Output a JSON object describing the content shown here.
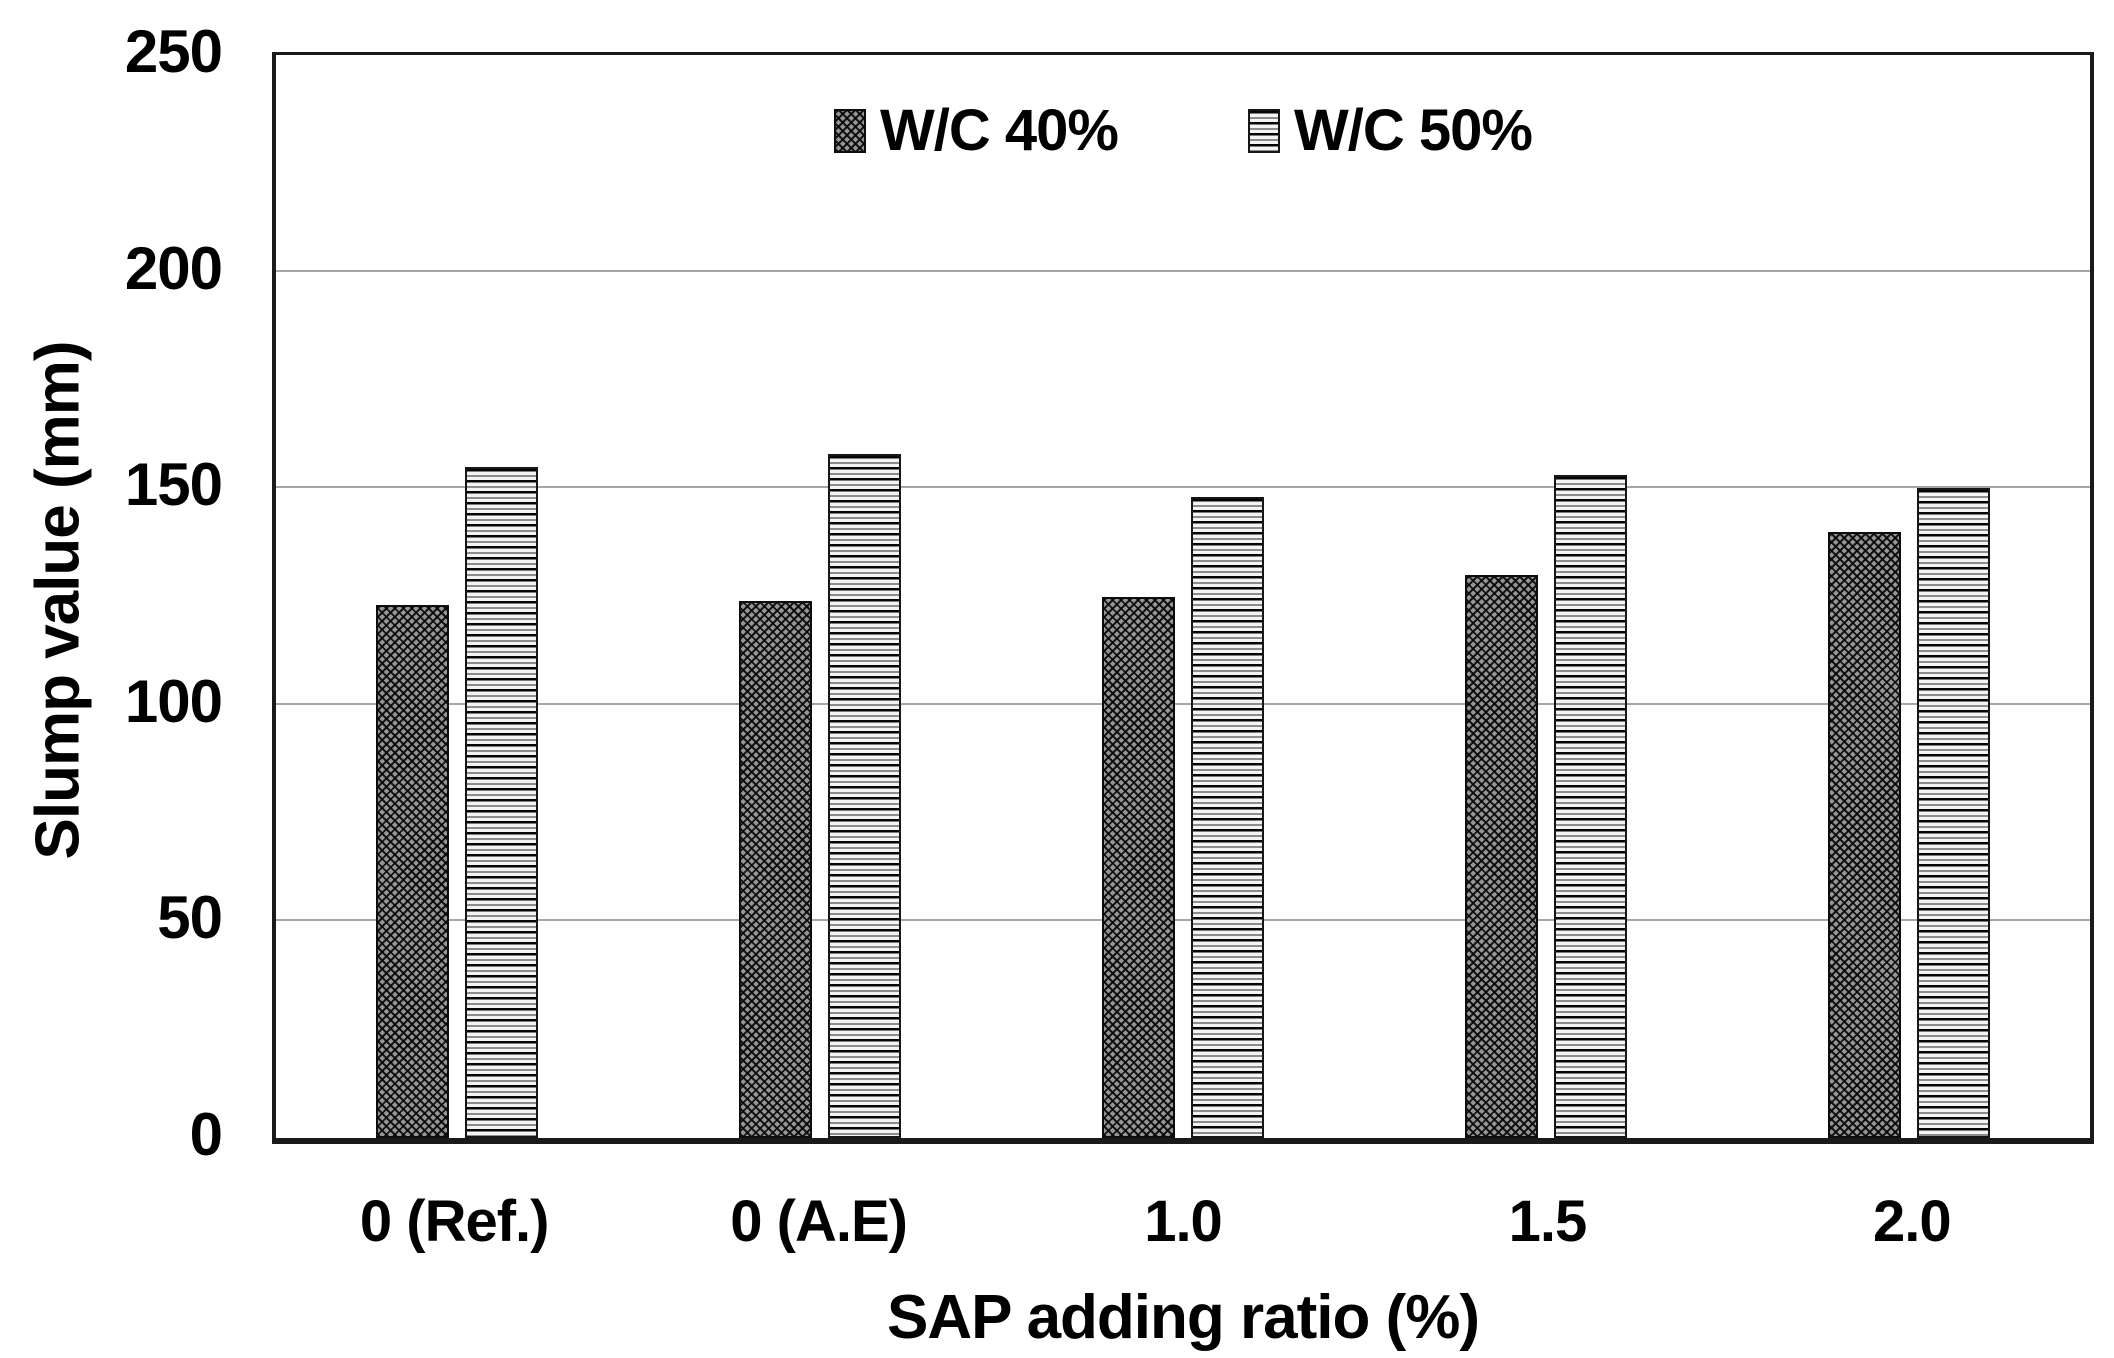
{
  "chart_data": {
    "type": "bar",
    "title": "",
    "categories": [
      "0 (Ref.)",
      "0 (A.E)",
      "1.0",
      "1.5",
      "2.0"
    ],
    "series": [
      {
        "name": "W/C 40%",
        "pattern": "crosshatch",
        "values": [
          123,
          124,
          125,
          130,
          140
        ]
      },
      {
        "name": "W/C 50%",
        "pattern": "hstripes",
        "values": [
          155,
          158,
          148,
          153,
          150
        ]
      }
    ],
    "xlabel": "SAP adding ratio (%)",
    "ylabel": "Slump value (mm)",
    "ylim": [
      0,
      250
    ],
    "yticks": [
      0,
      50,
      100,
      150,
      200,
      250
    ],
    "grid": "horizontal-gridlines-at-50-100-150-200",
    "legend_position": "top-center-inside"
  },
  "colors": {
    "background": "#ffffff",
    "axis_frame": "#1a1a1a",
    "gridline": "#a6a6a6",
    "text": "#000000",
    "bar_crosshatch_base": "#969696",
    "bar_stripe_dark": "#050505",
    "bar_stripe_light": "#f4f4f4"
  }
}
